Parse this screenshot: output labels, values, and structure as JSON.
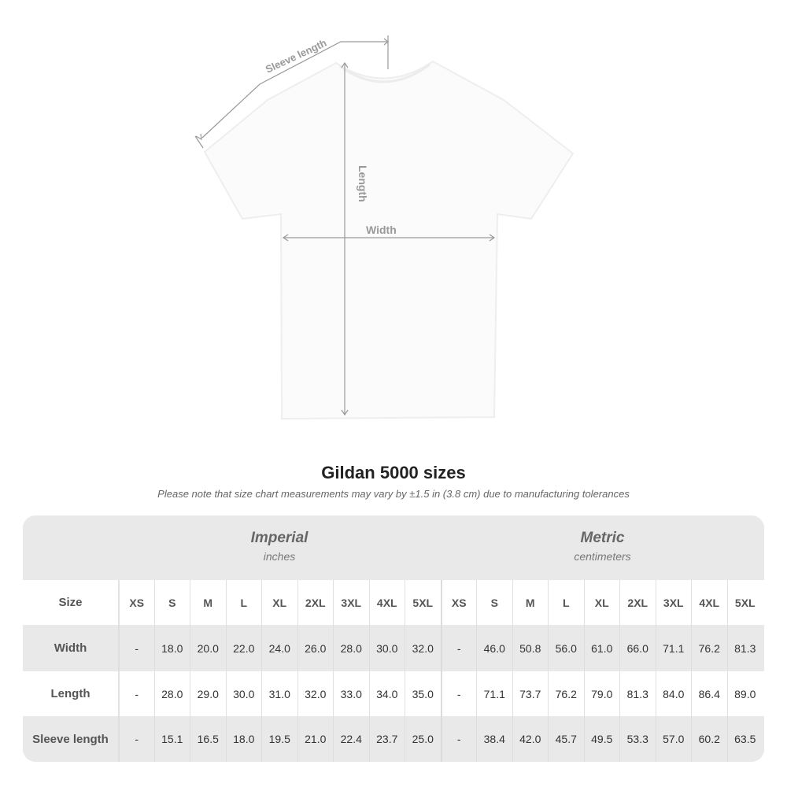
{
  "diagram": {
    "labels": {
      "sleeve_length": "Sleeve length",
      "length": "Length",
      "width": "Width"
    }
  },
  "title": "Gildan 5000 sizes",
  "note": "Please note that size chart measurements may vary by ±1.5 in (3.8 cm) due to manufacturing tolerances",
  "table": {
    "imperial": {
      "system": "Imperial",
      "unit": "inches"
    },
    "metric": {
      "system": "Metric",
      "unit": "centimeters"
    },
    "size_label": "Size",
    "sizes": [
      "XS",
      "S",
      "M",
      "L",
      "XL",
      "2XL",
      "3XL",
      "4XL",
      "5XL"
    ],
    "rows": [
      {
        "label": "Width",
        "imperial": [
          "-",
          "18.0",
          "20.0",
          "22.0",
          "24.0",
          "26.0",
          "28.0",
          "30.0",
          "32.0"
        ],
        "metric": [
          "-",
          "46.0",
          "50.8",
          "56.0",
          "61.0",
          "66.0",
          "71.1",
          "76.2",
          "81.3"
        ]
      },
      {
        "label": "Length",
        "imperial": [
          "-",
          "28.0",
          "29.0",
          "30.0",
          "31.0",
          "32.0",
          "33.0",
          "34.0",
          "35.0"
        ],
        "metric": [
          "-",
          "71.1",
          "73.7",
          "76.2",
          "79.0",
          "81.3",
          "84.0",
          "86.4",
          "89.0"
        ]
      },
      {
        "label": "Sleeve length",
        "imperial": [
          "-",
          "15.1",
          "16.5",
          "18.0",
          "19.5",
          "21.0",
          "22.4",
          "23.7",
          "25.0"
        ],
        "metric": [
          "-",
          "38.4",
          "42.0",
          "45.7",
          "49.5",
          "53.3",
          "57.0",
          "60.2",
          "63.5"
        ]
      }
    ]
  }
}
